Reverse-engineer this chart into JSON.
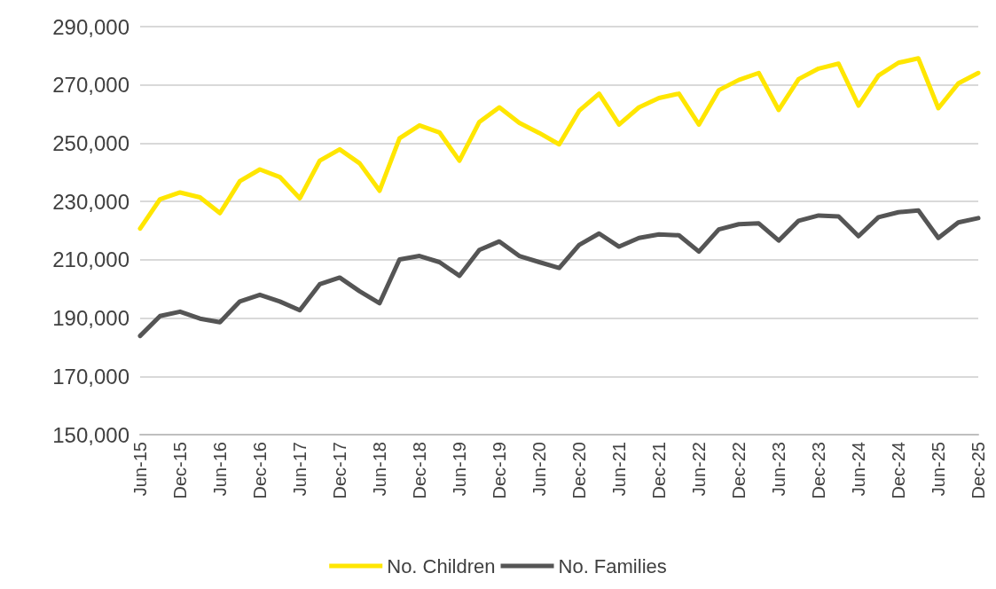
{
  "chart_data": {
    "type": "line",
    "categories": [
      "Jun-15",
      null,
      "Dec-15",
      null,
      "Jun-16",
      null,
      "Dec-16",
      null,
      "Jun-17",
      null,
      "Dec-17",
      null,
      "Jun-18",
      null,
      "Dec-18",
      null,
      "Jun-19",
      null,
      "Dec-19",
      null,
      "Jun-20",
      null,
      "Dec-20",
      null,
      "Jun-21",
      null,
      "Dec-21",
      null,
      "Jun-22",
      null,
      "Dec-22",
      null,
      "Jun-23",
      null,
      "Dec-23",
      null,
      "Jun-24",
      null,
      "Dec-24",
      null,
      "Jun-25",
      null,
      "Dec-25"
    ],
    "series": [
      {
        "name": "No. Children",
        "color": "#ffe600",
        "values": [
          220700,
          230800,
          233100,
          231400,
          226000,
          237000,
          241000,
          238400,
          231100,
          244000,
          247900,
          243100,
          233700,
          251700,
          256100,
          253700,
          244000,
          257300,
          262300,
          257000,
          253500,
          249600,
          261100,
          267000,
          256400,
          262300,
          265500,
          267000,
          256400,
          268200,
          271700,
          274100,
          261400,
          272000,
          275600,
          277300,
          262900,
          273200,
          277600,
          279100,
          262000,
          270500,
          274100
        ]
      },
      {
        "name": "No. Families",
        "color": "#555555",
        "values": [
          183900,
          190700,
          192200,
          189800,
          188600,
          195700,
          198000,
          195700,
          192700,
          201600,
          203900,
          199200,
          195100,
          210100,
          211300,
          209200,
          204500,
          213400,
          216300,
          211300,
          209200,
          207200,
          215100,
          219000,
          214500,
          217500,
          218700,
          218400,
          212800,
          220400,
          222200,
          222500,
          216600,
          223400,
          225200,
          224900,
          218100,
          224600,
          226300,
          226900,
          217500,
          222800,
          224300
        ]
      }
    ],
    "ylim": [
      150000,
      290000
    ],
    "yticks": [
      {
        "value": 150000,
        "label": "150,000"
      },
      {
        "value": 170000,
        "label": "170,000"
      },
      {
        "value": 190000,
        "label": "190,000"
      },
      {
        "value": 210000,
        "label": "210,000"
      },
      {
        "value": 230000,
        "label": "230,000"
      },
      {
        "value": 250000,
        "label": "250,000"
      },
      {
        "value": 270000,
        "label": "270,000"
      },
      {
        "value": 290000,
        "label": "290,000"
      }
    ],
    "grid": "y",
    "legend": "bottom",
    "marker": "none",
    "line_style": "solid"
  }
}
